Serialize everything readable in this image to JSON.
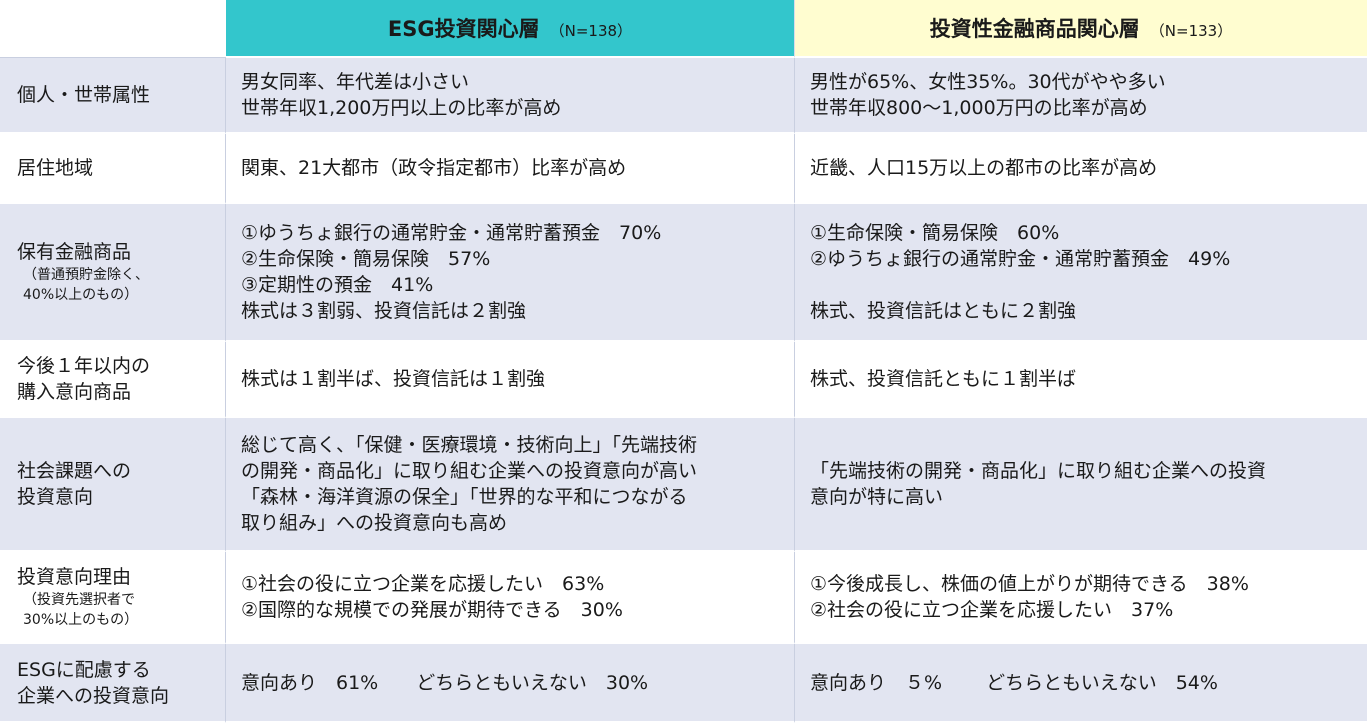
{
  "header": {
    "col1_title": "ESG投資関心層",
    "col1_n": "（N=138）",
    "col2_title": "投資性金融商品関心層",
    "col2_n": "（N=133）"
  },
  "rows": [
    {
      "label": [
        "個人・世帯属性"
      ],
      "label_sub": [],
      "esg": [
        "男女同率、年代差は小さい",
        "世帯年収1,200万円以上の比率が高め"
      ],
      "inv": [
        "男性が65%、女性35%。30代がやや多い",
        "世帯年収800～1,000万円の比率が高め"
      ]
    },
    {
      "label": [
        "居住地域"
      ],
      "label_sub": [],
      "esg": [
        "関東、21大都市（政令指定都市）比率が高め"
      ],
      "inv": [
        "近畿、人口15万以上の都市の比率が高め"
      ]
    },
    {
      "label": [
        "保有金融商品"
      ],
      "label_sub": [
        "（普通預貯金除く、",
        "40%以上のもの）"
      ],
      "esg": [
        "①ゆうちょ銀行の通常貯金・通常貯蓄預金　70%",
        "②生命保険・簡易保険　57%",
        "③定期性の預金　41%",
        "株式は３割弱、投資信託は２割強"
      ],
      "inv": [
        "①生命保険・簡易保険　60%",
        "②ゆうちょ銀行の通常貯金・通常貯蓄預金　49%",
        "",
        "株式、投資信託はともに２割強"
      ]
    },
    {
      "label": [
        "今後１年以内の",
        "購入意向商品"
      ],
      "label_sub": [],
      "esg": [
        "株式は１割半ば、投資信託は１割強"
      ],
      "inv": [
        "株式、投資信託ともに１割半ば"
      ]
    },
    {
      "label": [
        "社会課題への",
        "投資意向"
      ],
      "label_sub": [],
      "esg": [
        "総じて高く、「保健・医療環境・技術向上」「先端技術",
        "の開発・商品化」に取り組む企業への投資意向が高い",
        "「森林・海洋資源の保全」「世界的な平和につながる",
        "取り組み」への投資意向も高め"
      ],
      "inv": [
        "「先端技術の開発・商品化」に取り組む企業への投資",
        "意向が特に高い"
      ]
    },
    {
      "label": [
        "投資意向理由"
      ],
      "label_sub": [
        "（投資先選択者で",
        "30%以上のもの）"
      ],
      "esg": [
        "①社会の役に立つ企業を応援したい　63%",
        "②国際的な規模での発展が期待できる　30%"
      ],
      "inv": [
        "①今後成長し、株価の値上がりが期待できる　38%",
        "②社会の役に立つ企業を応援したい　37%"
      ]
    },
    {
      "label": [
        "ESGに配慮する",
        "企業への投資意向"
      ],
      "label_sub": [],
      "esg": [
        "意向あり　61%　　どちらともいえない　30%"
      ],
      "inv": [
        "意向あり　５%　　 どちらともいえない　54%"
      ]
    }
  ]
}
